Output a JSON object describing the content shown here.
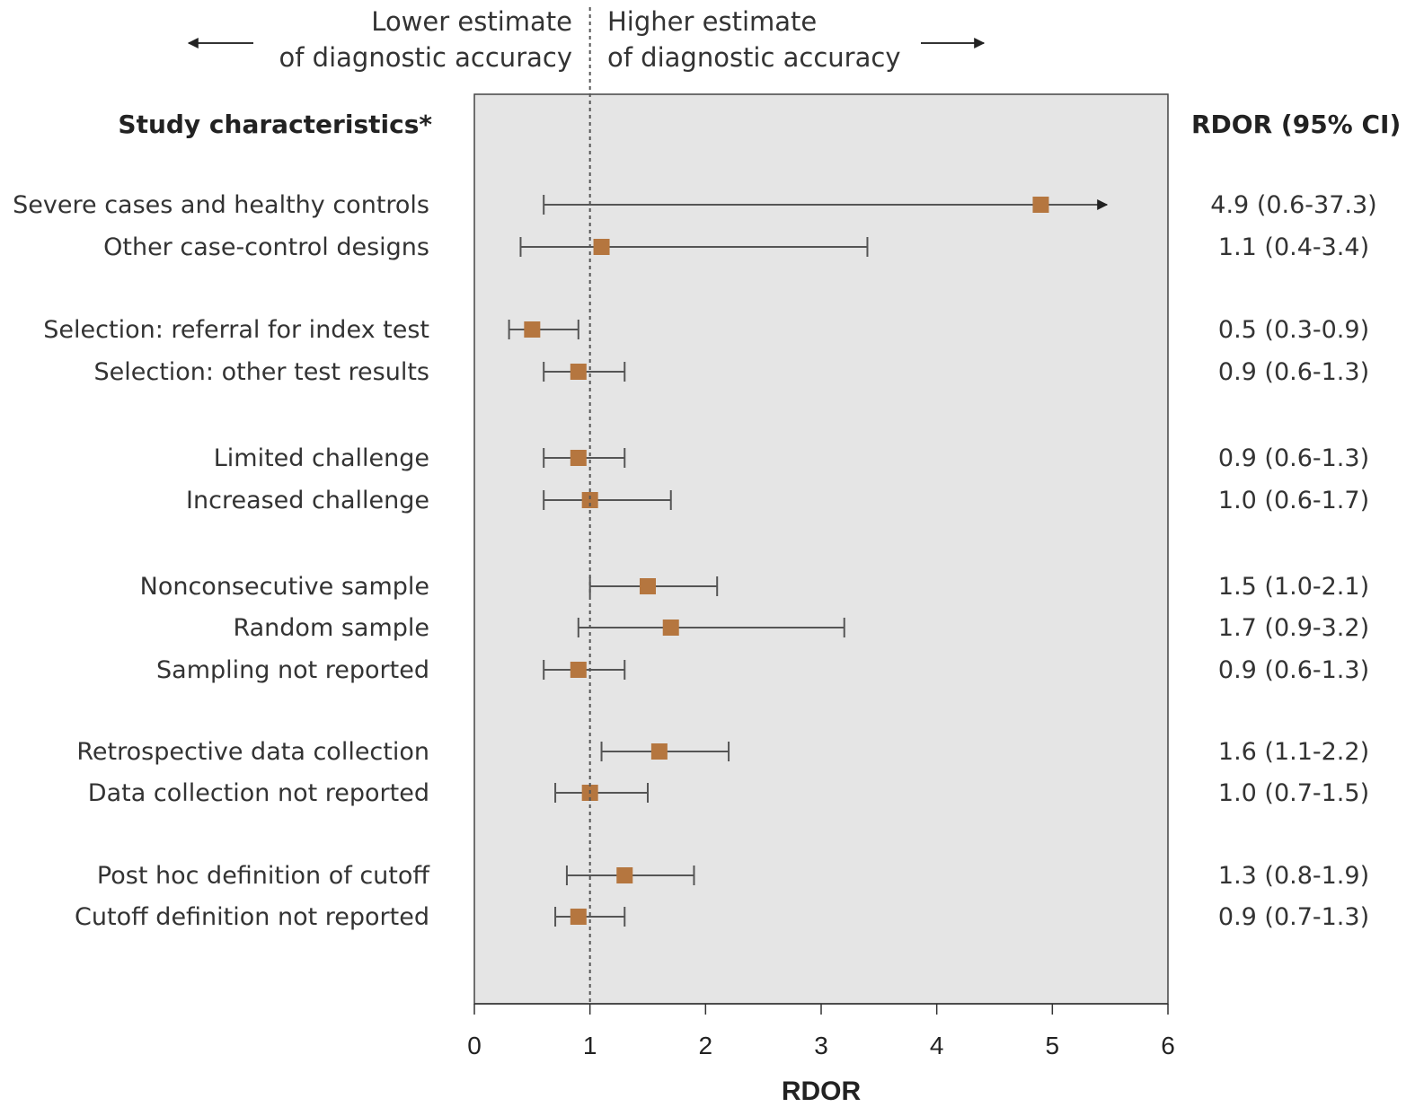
{
  "header": {
    "lower_line1": "Lower estimate",
    "lower_line2": "of diagnostic accuracy",
    "higher_line1": "Higher estimate",
    "higher_line2": "of diagnostic accuracy"
  },
  "columns": {
    "label_header": "Study characteristics*",
    "ci_header": "RDOR (95% CI)"
  },
  "colors": {
    "panel": "#e5e5e5",
    "marker": "#b5763f",
    "line": "#555555"
  },
  "chart_data": {
    "type": "forest",
    "xlabel": "RDOR",
    "xlim": [
      0,
      6
    ],
    "xticks": [
      0,
      1,
      2,
      3,
      4,
      5,
      6
    ],
    "reference_line": 1,
    "rows": [
      {
        "label": "Severe cases and healthy controls",
        "est": 4.9,
        "lo": 0.6,
        "hi": 37.3,
        "ci_text": "4.9 (0.6-37.3)",
        "group": 0
      },
      {
        "label": "Other case-control designs",
        "est": 1.1,
        "lo": 0.4,
        "hi": 3.4,
        "ci_text": "1.1 (0.4-3.4)",
        "group": 0
      },
      {
        "label": "Selection: referral for index test",
        "est": 0.5,
        "lo": 0.3,
        "hi": 0.9,
        "ci_text": "0.5 (0.3-0.9)",
        "group": 1
      },
      {
        "label": "Selection: other test results",
        "est": 0.9,
        "lo": 0.6,
        "hi": 1.3,
        "ci_text": "0.9 (0.6-1.3)",
        "group": 1
      },
      {
        "label": "Limited challenge",
        "est": 0.9,
        "lo": 0.6,
        "hi": 1.3,
        "ci_text": "0.9 (0.6-1.3)",
        "group": 2
      },
      {
        "label": "Increased challenge",
        "est": 1.0,
        "lo": 0.6,
        "hi": 1.7,
        "ci_text": "1.0 (0.6-1.7)",
        "group": 2
      },
      {
        "label": "Nonconsecutive sample",
        "est": 1.5,
        "lo": 1.0,
        "hi": 2.1,
        "ci_text": "1.5 (1.0-2.1)",
        "group": 3
      },
      {
        "label": "Random sample",
        "est": 1.7,
        "lo": 0.9,
        "hi": 3.2,
        "ci_text": "1.7 (0.9-3.2)",
        "group": 3
      },
      {
        "label": "Sampling not reported",
        "est": 0.9,
        "lo": 0.6,
        "hi": 1.3,
        "ci_text": "0.9 (0.6-1.3)",
        "group": 3
      },
      {
        "label": "Retrospective data collection",
        "est": 1.6,
        "lo": 1.1,
        "hi": 2.2,
        "ci_text": "1.6 (1.1-2.2)",
        "group": 4
      },
      {
        "label": "Data collection not reported",
        "est": 1.0,
        "lo": 0.7,
        "hi": 1.5,
        "ci_text": "1.0 (0.7-1.5)",
        "group": 4
      },
      {
        "label": "Post hoc definition of cutoff",
        "est": 1.3,
        "lo": 0.8,
        "hi": 1.9,
        "ci_text": "1.3 (0.8-1.9)",
        "group": 5
      },
      {
        "label": "Cutoff definition not reported",
        "est": 0.9,
        "lo": 0.7,
        "hi": 1.3,
        "ci_text": "0.9 (0.7-1.3)",
        "group": 5
      }
    ]
  }
}
